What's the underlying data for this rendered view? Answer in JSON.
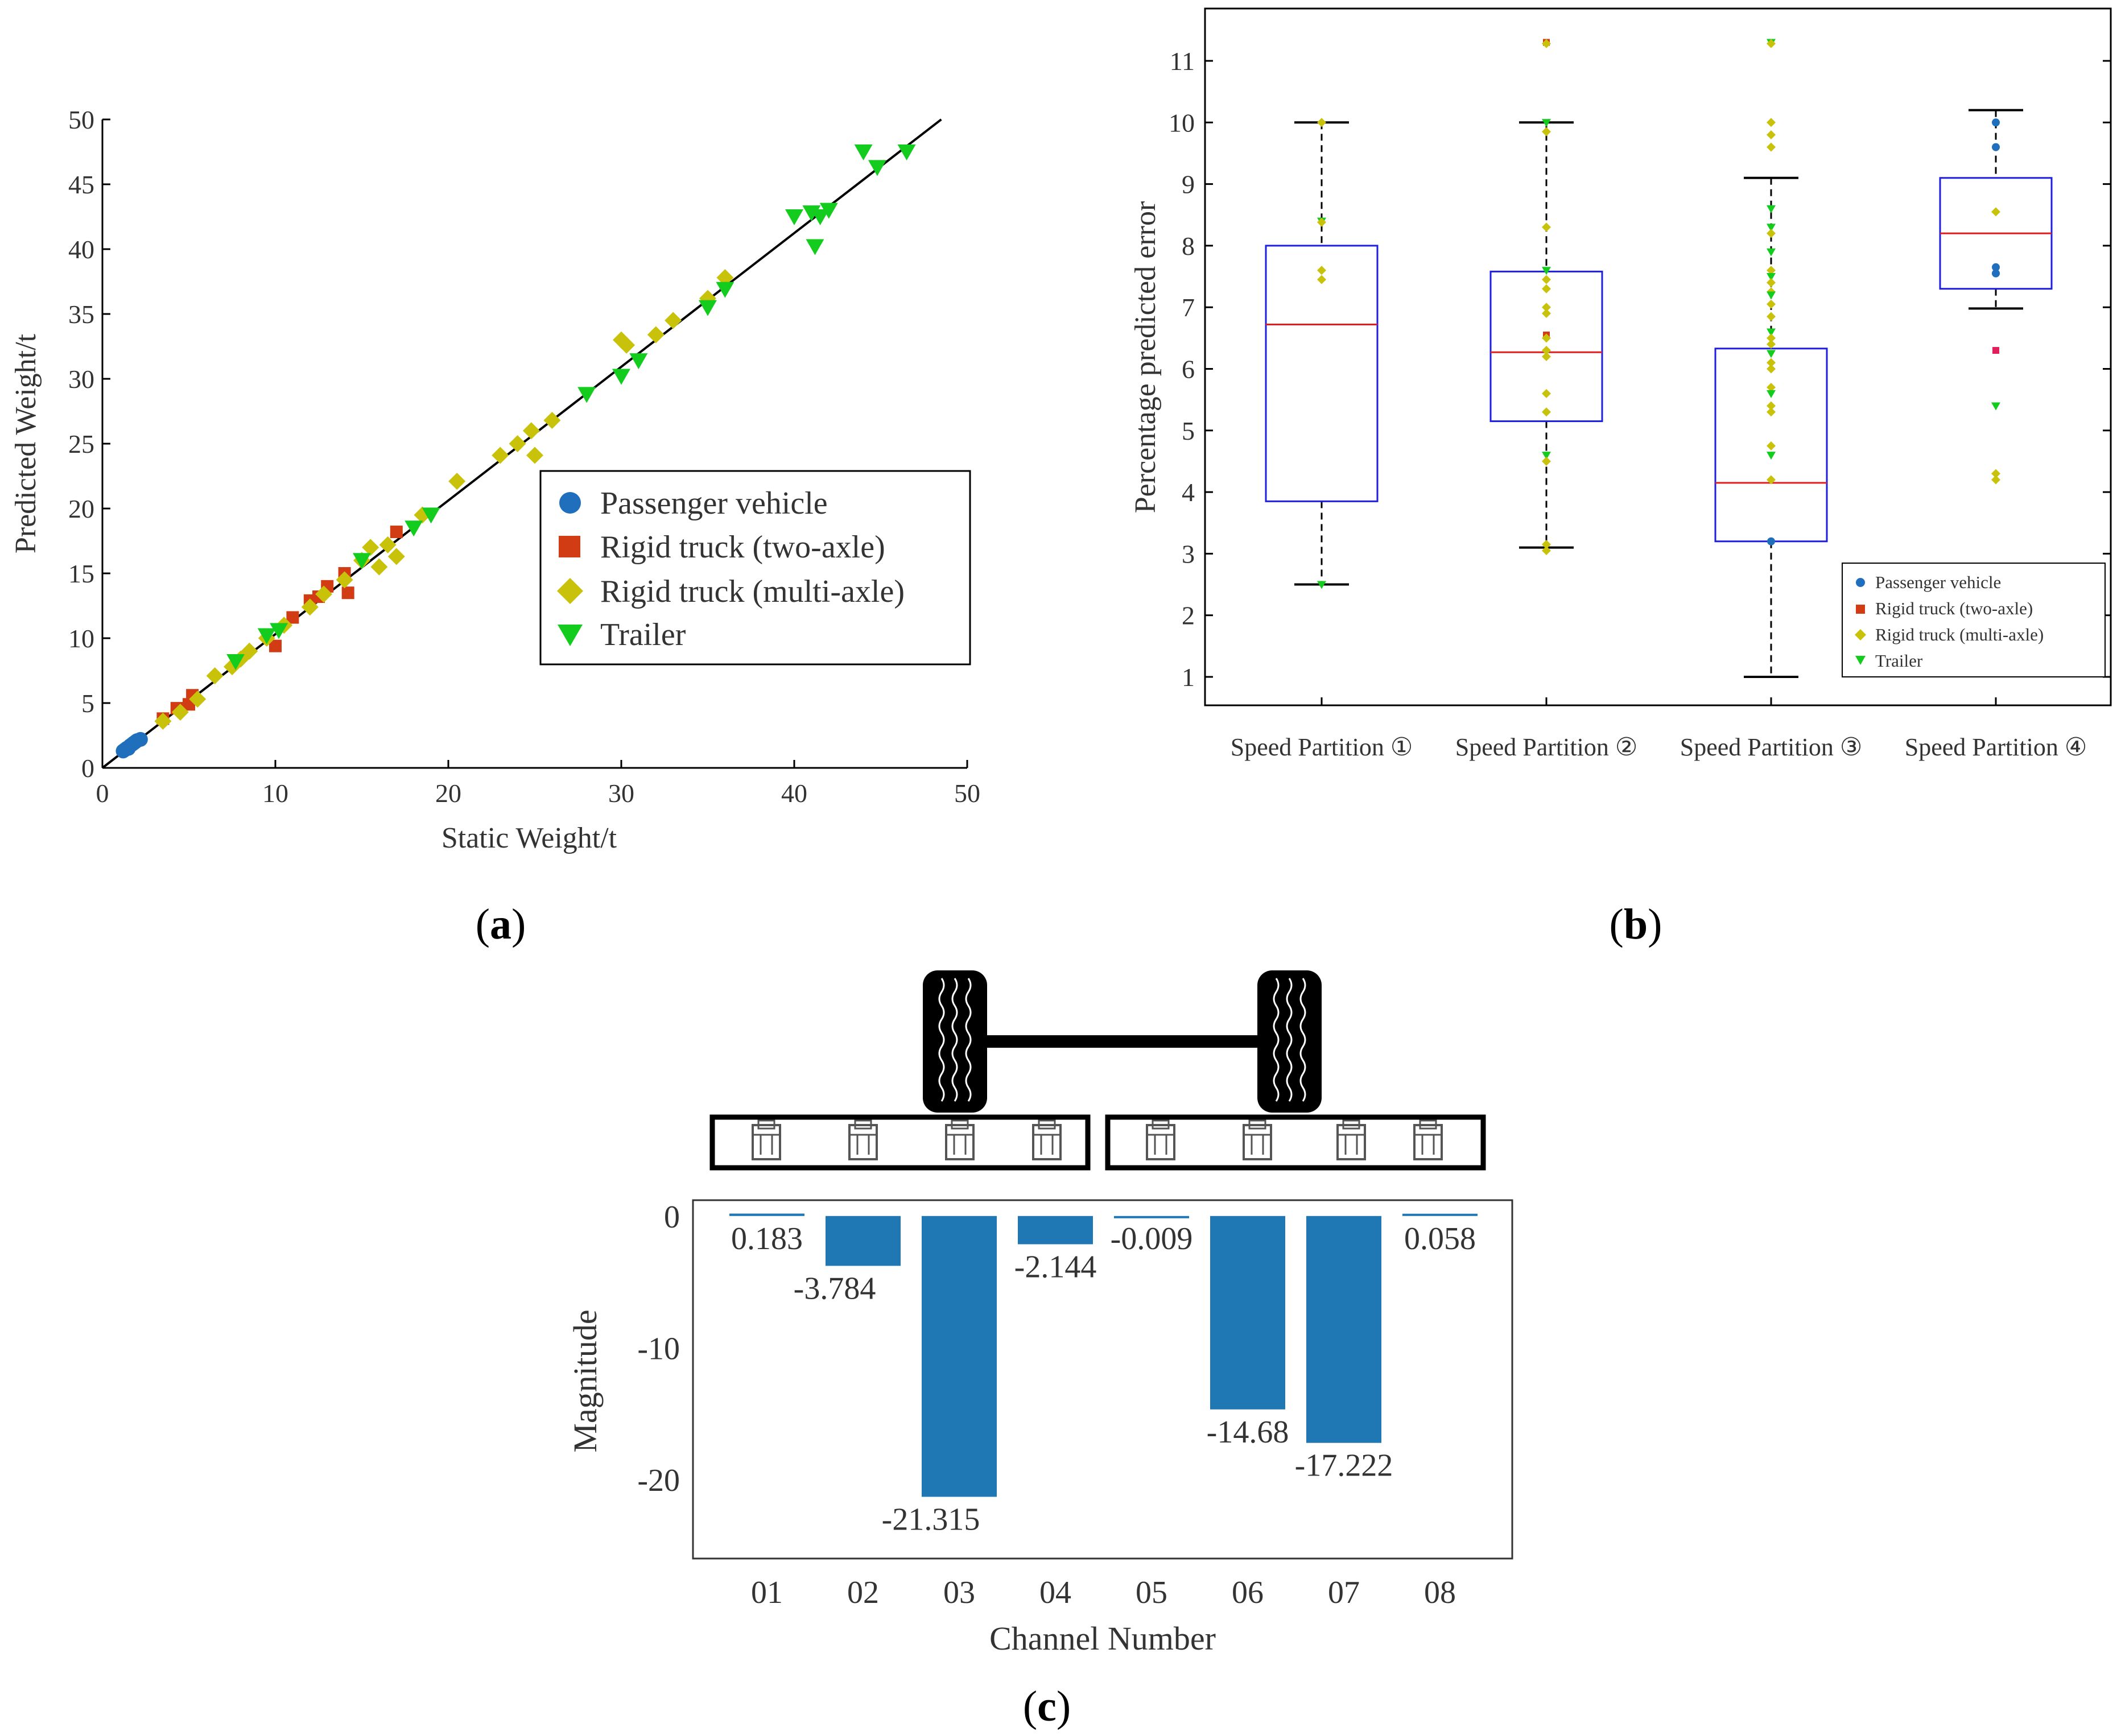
{
  "chart_data": [
    {
      "panel": "a",
      "type": "scatter",
      "xlabel": "Static Weight/t",
      "ylabel": "Predicted Weight/t",
      "xlim": [
        0,
        50
      ],
      "ylim": [
        0,
        50
      ],
      "xticks": [
        0,
        10,
        20,
        30,
        40,
        50
      ],
      "yticks": [
        0,
        5,
        10,
        15,
        20,
        25,
        30,
        35,
        40,
        45,
        50
      ],
      "legend": [
        "Passenger  vehicle",
        "Rigid truck (two-axle)",
        "Rigid truck (multi-axle)",
        "Trailer"
      ],
      "fit_line": [
        [
          0,
          0
        ],
        [
          48.5,
          50
        ]
      ],
      "series": [
        {
          "name": "Passenger  vehicle",
          "color": "#1f6fbd",
          "marker": "circle",
          "points": [
            [
              1.2,
              1.3
            ],
            [
              1.3,
              1.4
            ],
            [
              1.4,
              1.5
            ],
            [
              1.5,
              1.5
            ],
            [
              1.6,
              1.7
            ],
            [
              1.7,
              1.8
            ],
            [
              1.8,
              1.9
            ],
            [
              1.9,
              2.0
            ],
            [
              2.0,
              2.1
            ],
            [
              2.2,
              2.2
            ]
          ]
        },
        {
          "name": "Rigid truck (two-axle)",
          "color": "#d23c14",
          "marker": "square",
          "points": [
            [
              3.5,
              3.8
            ],
            [
              4.3,
              4.6
            ],
            [
              5.0,
              4.9
            ],
            [
              5.2,
              5.6
            ],
            [
              10.0,
              9.4
            ],
            [
              11.0,
              11.6
            ],
            [
              12.0,
              12.9
            ],
            [
              12.5,
              13.2
            ],
            [
              13.0,
              14.0
            ],
            [
              14.0,
              15.0
            ],
            [
              14.2,
              13.5
            ],
            [
              17.0,
              18.2
            ]
          ]
        },
        {
          "name": "Rigid truck (multi-axle)",
          "color": "#c8c20a",
          "marker": "diamond",
          "points": [
            [
              3.5,
              3.6
            ],
            [
              4.5,
              4.3
            ],
            [
              5.5,
              5.3
            ],
            [
              6.5,
              7.1
            ],
            [
              7.5,
              7.8
            ],
            [
              8.0,
              8.4
            ],
            [
              8.5,
              9.0
            ],
            [
              9.5,
              10.0
            ],
            [
              10.5,
              11.0
            ],
            [
              12.0,
              12.4
            ],
            [
              12.8,
              13.4
            ],
            [
              14.0,
              14.5
            ],
            [
              15.0,
              16.0
            ],
            [
              15.5,
              17.0
            ],
            [
              16.0,
              15.5
            ],
            [
              16.5,
              17.2
            ],
            [
              17.0,
              16.3
            ],
            [
              18.5,
              19.5
            ],
            [
              20.5,
              22.1
            ],
            [
              23.0,
              24.1
            ],
            [
              24.0,
              25.0
            ],
            [
              24.8,
              26.0
            ],
            [
              25.0,
              24.1
            ],
            [
              26.0,
              26.8
            ],
            [
              30.0,
              33.0
            ],
            [
              30.3,
              32.6
            ],
            [
              32.0,
              33.4
            ],
            [
              33.0,
              34.5
            ],
            [
              35.0,
              36.2
            ],
            [
              36.0,
              37.8
            ]
          ]
        },
        {
          "name": "Trailer",
          "color": "#14cc1e",
          "marker": "triangle-down",
          "points": [
            [
              7.7,
              8.2
            ],
            [
              9.5,
              10.2
            ],
            [
              10.2,
              10.6
            ],
            [
              15.0,
              16.0
            ],
            [
              18.0,
              18.5
            ],
            [
              19.0,
              19.5
            ],
            [
              28.0,
              28.8
            ],
            [
              30.0,
              30.2
            ],
            [
              31.0,
              31.4
            ],
            [
              35.0,
              35.5
            ],
            [
              36.0,
              36.9
            ],
            [
              40.0,
              42.5
            ],
            [
              41.0,
              42.8
            ],
            [
              41.2,
              40.2
            ],
            [
              41.5,
              42.5
            ],
            [
              42.0,
              43.0
            ],
            [
              44.0,
              47.5
            ],
            [
              44.8,
              46.3
            ],
            [
              46.5,
              47.5
            ]
          ]
        }
      ]
    },
    {
      "panel": "b",
      "type": "box",
      "ylabel": "Percentage predicted error",
      "ylim": [
        0.5,
        11.8
      ],
      "yticks": [
        1,
        2,
        3,
        4,
        5,
        6,
        7,
        8,
        9,
        10,
        11
      ],
      "categories": [
        "Speed Partition ①",
        "Speed Partition ②",
        "Speed Partition ③",
        "Speed Partition ④"
      ],
      "legend": [
        "Passenger  vehicle",
        "Rigid truck (two-axle)",
        "Rigid truck (multi-axle)",
        "Trailer"
      ],
      "legend_colors": [
        "#1f6fbd",
        "#d23c14",
        "#c8c20a",
        "#14cc1e"
      ],
      "boxes": [
        {
          "whisker_low": 2.5,
          "q1": 3.85,
          "median": 6.72,
          "q3": 8.0,
          "whisker_high": 10.0
        },
        {
          "whisker_low": 3.1,
          "q1": 5.15,
          "median": 6.27,
          "q3": 7.58,
          "whisker_high": 10.0
        },
        {
          "whisker_low": 1.0,
          "q1": 3.2,
          "median": 4.15,
          "q3": 6.33,
          "whisker_high": 9.1
        },
        {
          "whisker_low": 6.98,
          "q1": 7.3,
          "median": 8.2,
          "q3": 9.1,
          "whisker_high": 10.2
        }
      ],
      "points": [
        [
          [
            10.0,
            "#c8c20a"
          ],
          [
            8.4,
            "#14cc1e"
          ],
          [
            8.38,
            "#c8c20a"
          ],
          [
            7.6,
            "#c8c20a"
          ],
          [
            7.45,
            "#c8c20a"
          ],
          [
            2.5,
            "#14cc1e"
          ]
        ],
        [
          [
            11.3,
            "#d23c14"
          ],
          [
            11.28,
            "#c8c20a"
          ],
          [
            10.0,
            "#14cc1e"
          ],
          [
            9.85,
            "#c8c20a"
          ],
          [
            8.3,
            "#c8c20a"
          ],
          [
            7.6,
            "#14cc1e"
          ],
          [
            7.45,
            "#c8c20a"
          ],
          [
            7.3,
            "#c8c20a"
          ],
          [
            7.0,
            "#c8c20a"
          ],
          [
            6.9,
            "#c8c20a"
          ],
          [
            6.55,
            "#d23c14"
          ],
          [
            6.5,
            "#c8c20a"
          ],
          [
            6.3,
            "#c8c20a"
          ],
          [
            6.2,
            "#c8c20a"
          ],
          [
            5.6,
            "#c8c20a"
          ],
          [
            5.3,
            "#c8c20a"
          ],
          [
            4.6,
            "#14cc1e"
          ],
          [
            4.5,
            "#c8c20a"
          ],
          [
            3.15,
            "#c8c20a"
          ],
          [
            3.05,
            "#c8c20a"
          ]
        ],
        [
          [
            11.3,
            "#14cc1e"
          ],
          [
            11.28,
            "#c8c20a"
          ],
          [
            10.0,
            "#c8c20a"
          ],
          [
            9.8,
            "#c8c20a"
          ],
          [
            9.6,
            "#c8c20a"
          ],
          [
            8.6,
            "#14cc1e"
          ],
          [
            8.3,
            "#14cc1e"
          ],
          [
            8.2,
            "#c8c20a"
          ],
          [
            7.9,
            "#14cc1e"
          ],
          [
            7.6,
            "#c8c20a"
          ],
          [
            7.5,
            "#14cc1e"
          ],
          [
            7.4,
            "#c8c20a"
          ],
          [
            7.25,
            "#c8c20a"
          ],
          [
            7.2,
            "#14cc1e"
          ],
          [
            7.05,
            "#c8c20a"
          ],
          [
            6.85,
            "#c8c20a"
          ],
          [
            6.6,
            "#14cc1e"
          ],
          [
            6.5,
            "#c8c20a"
          ],
          [
            6.4,
            "#c8c20a"
          ],
          [
            6.25,
            "#14cc1e"
          ],
          [
            6.1,
            "#c8c20a"
          ],
          [
            6.0,
            "#c8c20a"
          ],
          [
            5.7,
            "#c8c20a"
          ],
          [
            5.6,
            "#14cc1e"
          ],
          [
            5.4,
            "#c8c20a"
          ],
          [
            5.3,
            "#c8c20a"
          ],
          [
            4.75,
            "#c8c20a"
          ],
          [
            4.6,
            "#14cc1e"
          ],
          [
            4.2,
            "#c8c20a"
          ],
          [
            3.2,
            "#1f6fbd"
          ]
        ],
        [
          [
            10.0,
            "#1f6fbd"
          ],
          [
            9.6,
            "#1f6fbd"
          ],
          [
            8.55,
            "#c8c20a"
          ],
          [
            7.65,
            "#1f6fbd"
          ],
          [
            7.55,
            "#1f6fbd"
          ],
          [
            6.3,
            "#e0205a"
          ],
          [
            5.4,
            "#14cc1e"
          ],
          [
            4.3,
            "#c8c20a"
          ],
          [
            4.2,
            "#c8c20a"
          ]
        ]
      ]
    },
    {
      "panel": "c",
      "type": "bar",
      "xlabel": "Channel Number",
      "ylabel": "Magnitude",
      "categories": [
        "01",
        "02",
        "03",
        "04",
        "05",
        "06",
        "07",
        "08"
      ],
      "values": [
        0.183,
        -3.784,
        -21.315,
        -2.144,
        -0.009,
        -14.68,
        -17.222,
        0.058
      ],
      "value_labels": [
        "0.183",
        "-3.784",
        "-21.315",
        "-2.144",
        "-0.009",
        "-14.68",
        "-17.222",
        "0.058"
      ],
      "ylim": [
        -26,
        1.2
      ],
      "yticks": [
        0,
        -10,
        -20
      ],
      "color": "#1f77b4"
    }
  ],
  "panel_labels": {
    "a": "a",
    "b": "b",
    "c": "c"
  }
}
